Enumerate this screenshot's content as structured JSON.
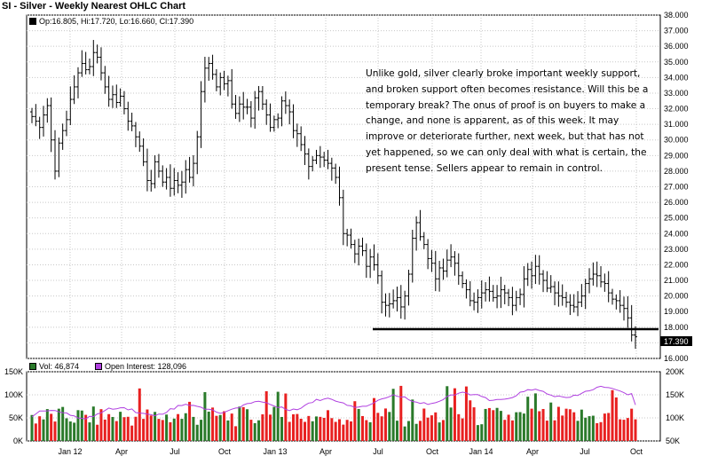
{
  "title": "SI - Silver - Weekly Nearest OHLC Chart",
  "ohlc_legend": "Op:16.805, Hi:17.720, Lo:16.660, Cl:17.390",
  "vol_legend": "Vol: 46,874",
  "oi_legend": "Open Interest: 128,096",
  "annotation": "Unlike gold, silver clearly broke important weekly support, and broken support often becomes resistance.  Will this be a temporary break?  The onus of proof is on buyers to make a change, and none is apparent, as of this week.  It may improve or deteriorate further, next week, but that has not yet happened, so we can only deal with what is certain, the present tense.  Sellers appear to remain in control.",
  "last_price_label": "17.390",
  "colors": {
    "up_volume": "#2a7a2a",
    "down_volume": "#e82020",
    "open_interest": "#b040e0",
    "price": "#000000"
  },
  "chart_data": [
    {
      "type": "ohlc",
      "name": "SI - Silver - Weekly Nearest OHLC Chart",
      "x_tick_labels": [
        "Jan 12",
        "Apr",
        "Jul",
        "Oct",
        "Jan 13",
        "Apr",
        "Jul",
        "Oct",
        "Jan 14",
        "Apr",
        "Jul",
        "Oct"
      ],
      "y_tick_labels": [
        "16.000",
        "17.000",
        "18.000",
        "19.000",
        "20.000",
        "21.000",
        "22.000",
        "23.000",
        "24.000",
        "25.000",
        "26.000",
        "27.000",
        "28.000",
        "29.000",
        "30.000",
        "31.000",
        "32.000",
        "33.000",
        "34.000",
        "35.000",
        "36.000",
        "37.000",
        "38.000"
      ],
      "ylim": [
        16,
        38
      ],
      "support_line": 18.2,
      "last_close": 17.39,
      "weekly_closes": [
        31.5,
        31.2,
        30.8,
        31.6,
        32.2,
        30.0,
        28.0,
        29.8,
        30.6,
        31.3,
        32.6,
        33.4,
        34.3,
        34.9,
        34.5,
        34.7,
        35.6,
        35.3,
        34.3,
        33.4,
        32.6,
        32.9,
        32.4,
        32.8,
        32.0,
        31.2,
        30.9,
        30.2,
        29.6,
        28.6,
        27.4,
        27.2,
        28.6,
        28.0,
        27.3,
        27.6,
        26.9,
        27.4,
        27.1,
        27.3,
        28.1,
        27.6,
        28.5,
        30.2,
        33.1,
        34.6,
        34.9,
        34.2,
        33.4,
        34.0,
        33.6,
        33.8,
        32.3,
        31.7,
        32.3,
        32.1,
        32.1,
        31.4,
        32.7,
        33.1,
        32.3,
        31.6,
        30.8,
        31.3,
        31.4,
        32.5,
        32.2,
        31.8,
        30.6,
        30.4,
        29.7,
        29.1,
        28.3,
        28.7,
        29.0,
        28.9,
        28.7,
        28.5,
        28.2,
        27.6,
        26.3,
        24.0,
        23.9,
        23.3,
        22.7,
        23.2,
        22.9,
        21.9,
        22.5,
        22.0,
        21.3,
        19.6,
        19.4,
        19.5,
        19.7,
        19.9,
        19.3,
        20.0,
        21.4,
        23.7,
        24.7,
        23.8,
        23.3,
        22.4,
        22.1,
        21.1,
        21.8,
        21.6,
        22.3,
        22.5,
        22.1,
        21.3,
        20.8,
        20.4,
        19.7,
        19.6,
        19.9,
        20.2,
        20.4,
        20.3,
        19.9,
        20.0,
        20.4,
        20.2,
        19.9,
        19.4,
        19.9,
        20.1,
        21.1,
        21.7,
        21.3,
        21.9,
        21.4,
        21.0,
        20.5,
        20.6,
        20.2,
        20.0,
        19.9,
        19.6,
        19.4,
        19.3,
        19.6,
        20.0,
        20.8,
        21.1,
        21.4,
        21.3,
        20.9,
        20.8,
        20.2,
        19.8,
        19.7,
        19.4,
        19.2,
        18.6,
        17.5,
        17.4
      ]
    },
    {
      "type": "bar",
      "name": "Volume and Open Interest",
      "series": [
        {
          "name": "Vol",
          "last": 46874
        },
        {
          "name": "Open Interest",
          "last": 128096
        }
      ],
      "y_left_tick_labels": [
        "150K",
        "100K",
        "50K",
        "0K"
      ],
      "y_right_tick_labels": [
        "200K",
        "150K",
        "100K",
        "50K"
      ]
    }
  ]
}
